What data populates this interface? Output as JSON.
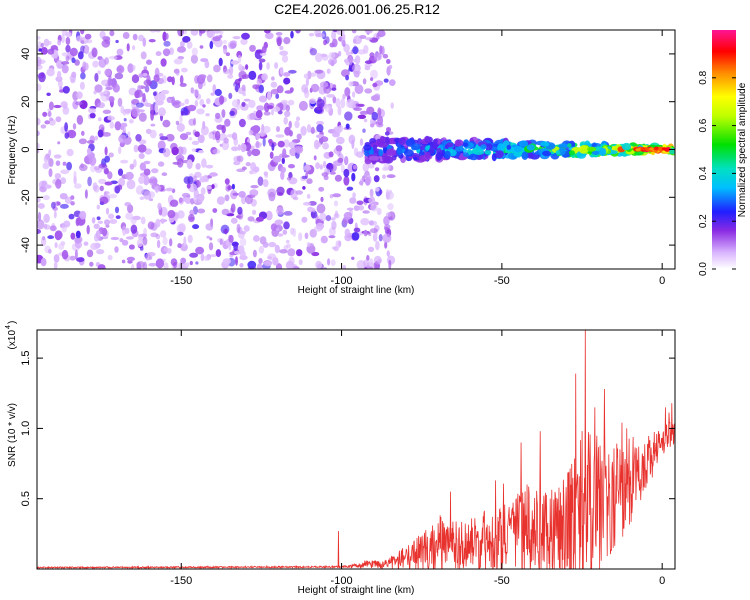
{
  "figure": {
    "title": "C2E4.2026.001.06.25.R12"
  },
  "colors": {
    "snr_line": "#e8322e",
    "spectrogram_purple": "#8a2be2",
    "frame": "#000000"
  },
  "chart_data": [
    {
      "type": "heatmap",
      "title": "C2E4.2026.001.06.25.R12",
      "xlabel": "Height of straight line (km)",
      "ylabel": "Frequency (Hz)",
      "xlim": [
        -195,
        4
      ],
      "ylim": [
        -50,
        50
      ],
      "xticks": [
        -150,
        -100,
        -50,
        0
      ],
      "xtick_labels": [
        "-150",
        "-100",
        "-50",
        "0"
      ],
      "yticks": [
        -40,
        -20,
        0,
        20,
        40
      ],
      "ytick_labels": [
        "-40",
        "-20",
        "0",
        "20",
        "40"
      ],
      "colorbar": {
        "label": "Normalized spectral amplitude",
        "range": [
          0,
          1
        ],
        "ticks": [
          0.0,
          0.2,
          0.4,
          0.6,
          0.8
        ],
        "tick_labels": [
          "0.0",
          "0.2",
          "0.4",
          "0.6",
          "0.8"
        ],
        "colormap": "rainbow: white-lavender, violet, blue, cyan, green, yellow, orange, red, magenta"
      },
      "features": [
        {
          "region": "noise",
          "x_range": [
            -195,
            -88
          ],
          "y_range": [
            -50,
            50
          ],
          "amplitude": 0.1
        },
        {
          "region": "signal_band",
          "x_range": [
            -92,
            4
          ],
          "center_freq": 0,
          "halfwidth_at_start": 5,
          "halfwidth_at_end": 1,
          "amplitude_start": 0.3,
          "amplitude_end": 0.95
        }
      ]
    },
    {
      "type": "line",
      "xlabel": "Height of straight line (km)",
      "ylabel": "SNR (10 * v/v)",
      "y_multiplier_label": "(x10",
      "y_multiplier_exp": "4",
      "xlim": [
        -195,
        4
      ],
      "ylim": [
        0,
        1.7
      ],
      "xticks": [
        -150,
        -100,
        -50,
        0
      ],
      "xtick_labels": [
        "-150",
        "-100",
        "-50",
        "0"
      ],
      "yticks": [
        0.5,
        1.0,
        1.5
      ],
      "ytick_labels": [
        "0.5",
        "1.0",
        "1.5"
      ],
      "series": [
        {
          "envelope_x": [
            -195,
            -100,
            -85,
            -80,
            -75,
            -70,
            -65,
            -60,
            -55,
            -50,
            -45,
            -40,
            -35,
            -30,
            -25,
            -20,
            -15,
            -10,
            -5,
            0,
            4
          ],
          "envelope_mean": [
            0.01,
            0.015,
            0.04,
            0.08,
            0.12,
            0.15,
            0.17,
            0.18,
            0.2,
            0.2,
            0.24,
            0.26,
            0.27,
            0.3,
            0.4,
            0.45,
            0.5,
            0.6,
            0.75,
            0.9,
            0.98
          ],
          "envelope_amp": [
            0.005,
            0.006,
            0.04,
            0.08,
            0.14,
            0.2,
            0.18,
            0.18,
            0.22,
            0.24,
            0.3,
            0.36,
            0.34,
            0.45,
            0.6,
            0.5,
            0.4,
            0.28,
            0.2,
            0.12,
            0.08
          ],
          "peaks": [
            {
              "x": -101,
              "y": 0.27
            },
            {
              "x": -69,
              "y": 0.37
            },
            {
              "x": -66,
              "y": 0.55
            },
            {
              "x": -52,
              "y": 0.63
            },
            {
              "x": -44,
              "y": 0.9
            },
            {
              "x": -38,
              "y": 0.98
            },
            {
              "x": -27,
              "y": 1.39
            },
            {
              "x": -24,
              "y": 1.7
            },
            {
              "x": -21,
              "y": 1.15
            },
            {
              "x": -18,
              "y": 1.28
            },
            {
              "x": -11,
              "y": 1.0
            },
            {
              "x": 1,
              "y": 1.15
            },
            {
              "x": 3,
              "y": 1.18
            }
          ]
        }
      ]
    }
  ]
}
